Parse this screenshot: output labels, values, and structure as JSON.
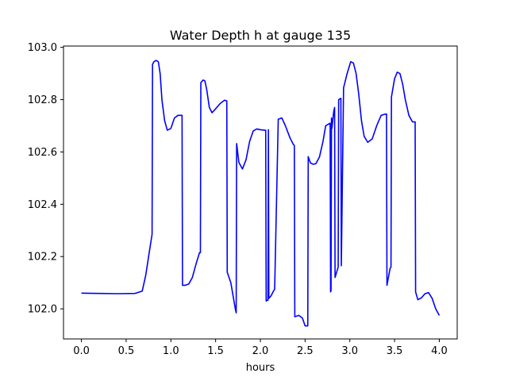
{
  "chart_data": {
    "type": "line",
    "title": "Water Depth h at gauge 135",
    "xlabel": "hours",
    "ylabel": "",
    "xlim": [
      -0.2,
      4.2
    ],
    "ylim": [
      101.885,
      103.005
    ],
    "xticks": [
      0.0,
      0.5,
      1.0,
      1.5,
      2.0,
      2.5,
      3.0,
      3.5,
      4.0
    ],
    "xtick_labels": [
      "0.0",
      "0.5",
      "1.0",
      "1.5",
      "2.0",
      "2.5",
      "3.0",
      "3.5",
      "4.0"
    ],
    "yticks": [
      102.0,
      102.2,
      102.4,
      102.6,
      102.8,
      103.0
    ],
    "ytick_labels": [
      "102.0",
      "102.2",
      "102.4",
      "102.6",
      "102.8",
      "103.0"
    ],
    "grid": false,
    "series": [
      {
        "color": "#0000ff",
        "x": [
          0.0,
          0.2,
          0.4,
          0.6,
          0.68,
          0.72,
          0.76,
          0.79,
          0.795,
          0.81,
          0.835,
          0.86,
          0.88,
          0.9,
          0.93,
          0.96,
          1.0,
          1.04,
          1.08,
          1.1,
          1.125,
          1.13,
          1.16,
          1.2,
          1.24,
          1.28,
          1.32,
          1.33,
          1.335,
          1.36,
          1.38,
          1.4,
          1.43,
          1.46,
          1.5,
          1.55,
          1.6,
          1.625,
          1.63,
          1.67,
          1.72,
          1.73,
          1.735,
          1.76,
          1.8,
          1.84,
          1.88,
          1.92,
          1.96,
          2.0,
          2.05,
          2.06,
          2.065,
          2.08,
          2.085,
          2.09,
          2.095,
          2.12,
          2.15,
          2.16,
          2.2,
          2.24,
          2.28,
          2.33,
          2.37,
          2.38,
          2.385,
          2.43,
          2.47,
          2.5,
          2.53,
          2.535,
          2.56,
          2.59,
          2.62,
          2.66,
          2.7,
          2.73,
          2.78,
          2.785,
          2.79,
          2.795,
          2.8,
          2.82,
          2.83,
          2.835,
          2.87,
          2.875,
          2.9,
          2.905,
          2.93,
          2.97,
          3.01,
          3.04,
          3.07,
          3.1,
          3.13,
          3.16,
          3.2,
          3.25,
          3.3,
          3.35,
          3.4,
          3.41,
          3.415,
          3.45,
          3.46,
          3.465,
          3.5,
          3.53,
          3.56,
          3.59,
          3.62,
          3.66,
          3.7,
          3.73,
          3.735,
          3.76,
          3.8,
          3.84,
          3.88,
          3.92,
          3.96,
          4.0
        ],
        "values": [
          102.06,
          102.059,
          102.058,
          102.059,
          102.068,
          102.13,
          102.22,
          102.285,
          102.935,
          102.945,
          102.95,
          102.945,
          102.9,
          102.8,
          102.72,
          102.683,
          102.69,
          102.73,
          102.74,
          102.74,
          102.74,
          102.09,
          102.09,
          102.095,
          102.12,
          102.17,
          102.215,
          102.215,
          102.865,
          102.875,
          102.872,
          102.84,
          102.77,
          102.75,
          102.765,
          102.785,
          102.798,
          102.795,
          102.14,
          102.1,
          102.0,
          101.985,
          102.632,
          102.56,
          102.535,
          102.57,
          102.64,
          102.68,
          102.688,
          102.685,
          102.683,
          102.683,
          102.03,
          102.033,
          102.033,
          102.685,
          102.04,
          102.05,
          102.07,
          102.075,
          102.725,
          102.73,
          102.7,
          102.655,
          102.628,
          102.625,
          101.97,
          101.975,
          101.965,
          101.935,
          101.935,
          102.582,
          102.558,
          102.553,
          102.555,
          102.58,
          102.64,
          102.7,
          102.71,
          102.065,
          102.07,
          102.73,
          102.69,
          102.755,
          102.77,
          102.12,
          102.16,
          102.8,
          102.805,
          102.165,
          102.845,
          102.9,
          102.945,
          102.94,
          102.9,
          102.82,
          102.72,
          102.66,
          102.637,
          102.65,
          102.7,
          102.74,
          102.745,
          102.745,
          102.09,
          102.155,
          102.16,
          102.81,
          102.88,
          102.905,
          102.9,
          102.86,
          102.8,
          102.74,
          102.715,
          102.715,
          102.065,
          102.035,
          102.042,
          102.058,
          102.062,
          102.04,
          102.0,
          101.975
        ]
      }
    ]
  }
}
